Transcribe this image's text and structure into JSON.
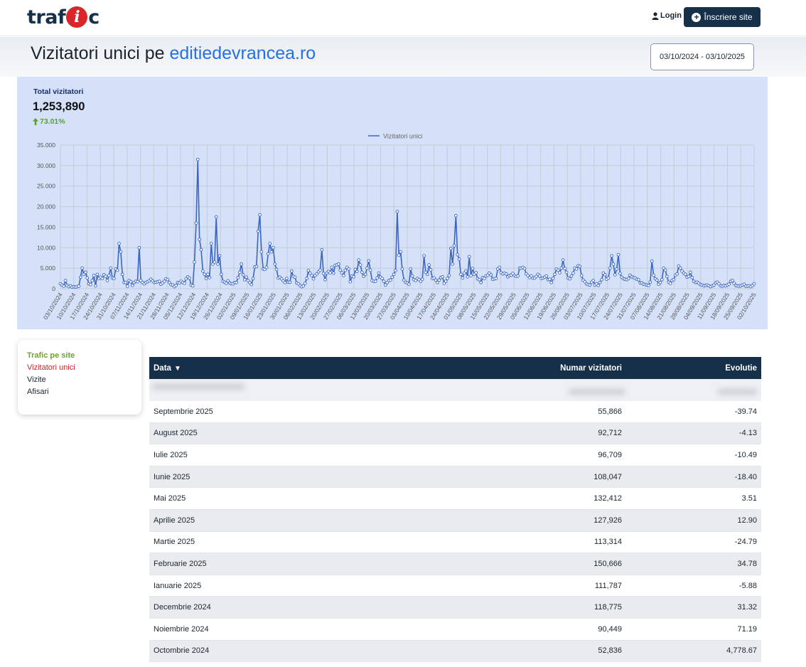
{
  "header": {
    "logo_text": "trafic",
    "login_label": "Login",
    "signup_label": "Înscriere site"
  },
  "title": {
    "prefix": "Vizitatori unici pe ",
    "site": "editiedevrancea.ro",
    "date_range": "03/10/2024 - 03/10/2025"
  },
  "summary": {
    "label": "Total vizitatori",
    "value": "1,253,890",
    "change": "73.01%",
    "change_color": "#5aa02c"
  },
  "sidemenu": {
    "items": [
      "Trafic pe site",
      "Vizitatori unici",
      "Vizite",
      "Afisari"
    ]
  },
  "table": {
    "headers": [
      "Data",
      "Numar vizitatori",
      "Evolutie"
    ],
    "sort_indicator": "▼",
    "rows": [
      [
        "Septembrie 2025",
        "55,866",
        "-39.74"
      ],
      [
        "August 2025",
        "92,712",
        "-4.13"
      ],
      [
        "Iulie 2025",
        "96,709",
        "-10.49"
      ],
      [
        "Iunie 2025",
        "108,047",
        "-18.40"
      ],
      [
        "Mai 2025",
        "132,412",
        "3.51"
      ],
      [
        "Aprilie 2025",
        "127,926",
        "12.90"
      ],
      [
        "Martie 2025",
        "113,314",
        "-24.79"
      ],
      [
        "Februarie 2025",
        "150,666",
        "34.78"
      ],
      [
        "Ianuarie 2025",
        "111,787",
        "-5.88"
      ],
      [
        "Decembrie 2024",
        "118,775",
        "31.32"
      ],
      [
        "Noiembrie 2024",
        "90,449",
        "71.19"
      ],
      [
        "Octombrie 2024",
        "52,836",
        "4,778.67"
      ]
    ]
  },
  "colors": {
    "navy": "#16304a",
    "accent": "#2470e6",
    "line": "#3b66c4",
    "panel": "#d5e1f8"
  },
  "chart_data": {
    "type": "line",
    "legend": "Vizitatori unici",
    "legend_position": "top-center",
    "grid": true,
    "ylim": [
      0,
      35000
    ],
    "yticks": [
      "0",
      "5.000",
      "10.000",
      "15.000",
      "20.000",
      "25.000",
      "30.000",
      "35.000"
    ],
    "xticks": [
      "03/10/2024",
      "10/10/2024",
      "17/10/2024",
      "24/10/2024",
      "31/10/2024",
      "07/11/2024",
      "14/11/2024",
      "21/11/2024",
      "28/11/2024",
      "05/12/2024",
      "12/12/2024",
      "19/12/2024",
      "26/12/2024",
      "02/01/2025",
      "09/01/2025",
      "16/01/2025",
      "23/01/2025",
      "30/01/2025",
      "06/02/2025",
      "13/02/2025",
      "20/02/2025",
      "27/02/2025",
      "06/03/2025",
      "13/03/2025",
      "20/03/2025",
      "27/03/2025",
      "03/04/2025",
      "10/04/2025",
      "17/04/2025",
      "24/04/2025",
      "01/05/2025",
      "08/05/2025",
      "15/05/2025",
      "22/05/2025",
      "29/05/2025",
      "05/06/2025",
      "12/06/2025",
      "19/06/2025",
      "26/06/2025",
      "03/07/2025",
      "10/07/2025",
      "17/07/2025",
      "24/07/2025",
      "31/07/2025",
      "07/08/2025",
      "14/08/2025",
      "21/08/2025",
      "28/08/2025",
      "04/09/2025",
      "11/09/2025",
      "18/09/2025",
      "25/09/2025",
      "02/10/2025"
    ],
    "x_start": "03/10/2024",
    "x_step_days": 1,
    "values": [
      1200,
      900,
      600,
      2000,
      800,
      500,
      700,
      400,
      500,
      400,
      500,
      600,
      2800,
      5000,
      3500,
      4000,
      2600,
      1200,
      1000,
      2000,
      3200,
      700,
      3500,
      2500,
      2800,
      2500,
      3400,
      3000,
      2000,
      3200,
      5000,
      2600,
      2500,
      4800,
      4500,
      11000,
      9000,
      3500,
      1500,
      1500,
      600,
      2000,
      1700,
      800,
      1500,
      1800,
      1700,
      10000,
      2000,
      1500,
      1200,
      1500,
      1700,
      1900,
      2300,
      1900,
      1500,
      1600,
      1700,
      1800,
      1100,
      1400,
      1800,
      2400,
      2200,
      1500,
      1000,
      900,
      500,
      800,
      1500,
      1400,
      1800,
      1500,
      1300,
      2400,
      2900,
      2600,
      900,
      700,
      6500,
      16000,
      31500,
      12000,
      9500,
      4300,
      3500,
      2500,
      3500,
      2700,
      11000,
      6000,
      6500,
      17500,
      6000,
      8000,
      3500,
      1800,
      1600,
      1300,
      1900,
      1400,
      1200,
      1200,
      1500,
      1500,
      2700,
      4000,
      6000,
      3400,
      2200,
      2800,
      2000,
      1500,
      1000,
      2500,
      5300,
      5400,
      14000,
      18000,
      9000,
      4800,
      4700,
      5200,
      8500,
      11000,
      9000,
      10000,
      6000,
      4700,
      2600,
      2800,
      2400,
      1900,
      1500,
      2500,
      1600,
      1600,
      4300,
      3000,
      2800,
      1400,
      1200,
      800,
      500,
      700,
      1300,
      2500,
      4400,
      3800,
      3200,
      2400,
      3200,
      3600,
      4100,
      4500,
      9500,
      3700,
      2200,
      3800,
      4200,
      3900,
      5200,
      3800,
      5700,
      5800,
      6000,
      4500,
      3900,
      3200,
      4500,
      5200,
      4800,
      1700,
      3100,
      2900,
      4700,
      4200,
      7000,
      5800,
      4000,
      3000,
      3500,
      5000,
      6800,
      4500,
      2000,
      1800,
      1800,
      2600,
      3800,
      2800,
      2500,
      1800,
      900,
      1500,
      2000,
      2100,
      2800,
      3500,
      4400,
      18800,
      8200,
      9000,
      4800,
      2100,
      1600,
      1400,
      1100,
      4800,
      3100,
      2200,
      2000,
      2500,
      2200,
      1800,
      2300,
      8000,
      4000,
      3500,
      5800,
      4600,
      2500,
      2600,
      2100,
      1500,
      2100,
      2700,
      2900,
      1300,
      1800,
      2500,
      3200,
      9800,
      6000,
      10500,
      17800,
      8300,
      7200,
      3500,
      2600,
      3800,
      4300,
      2900,
      7800,
      3200,
      4900,
      3500,
      3900,
      2400,
      2200,
      1500,
      2700,
      2500,
      3100,
      3300,
      3800,
      3400,
      2300,
      2400,
      2500,
      4800,
      5200,
      3900,
      3600,
      3800,
      3600,
      2900,
      3200,
      3300,
      3700,
      3200,
      3000,
      3100,
      5000,
      5000,
      5200,
      4900,
      3600,
      3200,
      2700,
      3100,
      2600,
      2600,
      3000,
      3500,
      3100,
      2500,
      2600,
      2800,
      3100,
      2200,
      2300,
      1500,
      2500,
      3500,
      4800,
      4500,
      3900,
      5000,
      7000,
      4900,
      4000,
      2600,
      2400,
      3100,
      3800,
      5000,
      4800,
      5600,
      5400,
      3200,
      2100,
      1700,
      1200,
      1000,
      900,
      1600,
      2000,
      900,
      1200,
      800,
      1500,
      2200,
      3800,
      3400,
      2300,
      2600,
      5000,
      8000,
      6000,
      3400,
      4800,
      8300,
      3700,
      2800,
      2400,
      2300,
      2200,
      2500,
      3300,
      2900,
      2700,
      2600,
      2300,
      2200,
      1400,
      1400,
      1100,
      1000,
      900,
      800,
      1600,
      6700,
      3300,
      2400,
      2100,
      1100,
      1500,
      2200,
      5000,
      4500,
      3000,
      1600,
      1300,
      2000,
      2200,
      3300,
      3600,
      5500,
      5000,
      4300,
      3800,
      3500,
      2800,
      3000,
      4000,
      2700,
      1800,
      1500,
      1600,
      1300,
      1000,
      900,
      700,
      800,
      900,
      700,
      500,
      700,
      900,
      1400,
      1600,
      1200,
      700,
      600,
      800,
      700,
      900,
      1100,
      1800,
      2000,
      1300,
      800,
      700,
      600,
      700,
      900,
      1100,
      600,
      600,
      700,
      500,
      800,
      1200
    ]
  }
}
